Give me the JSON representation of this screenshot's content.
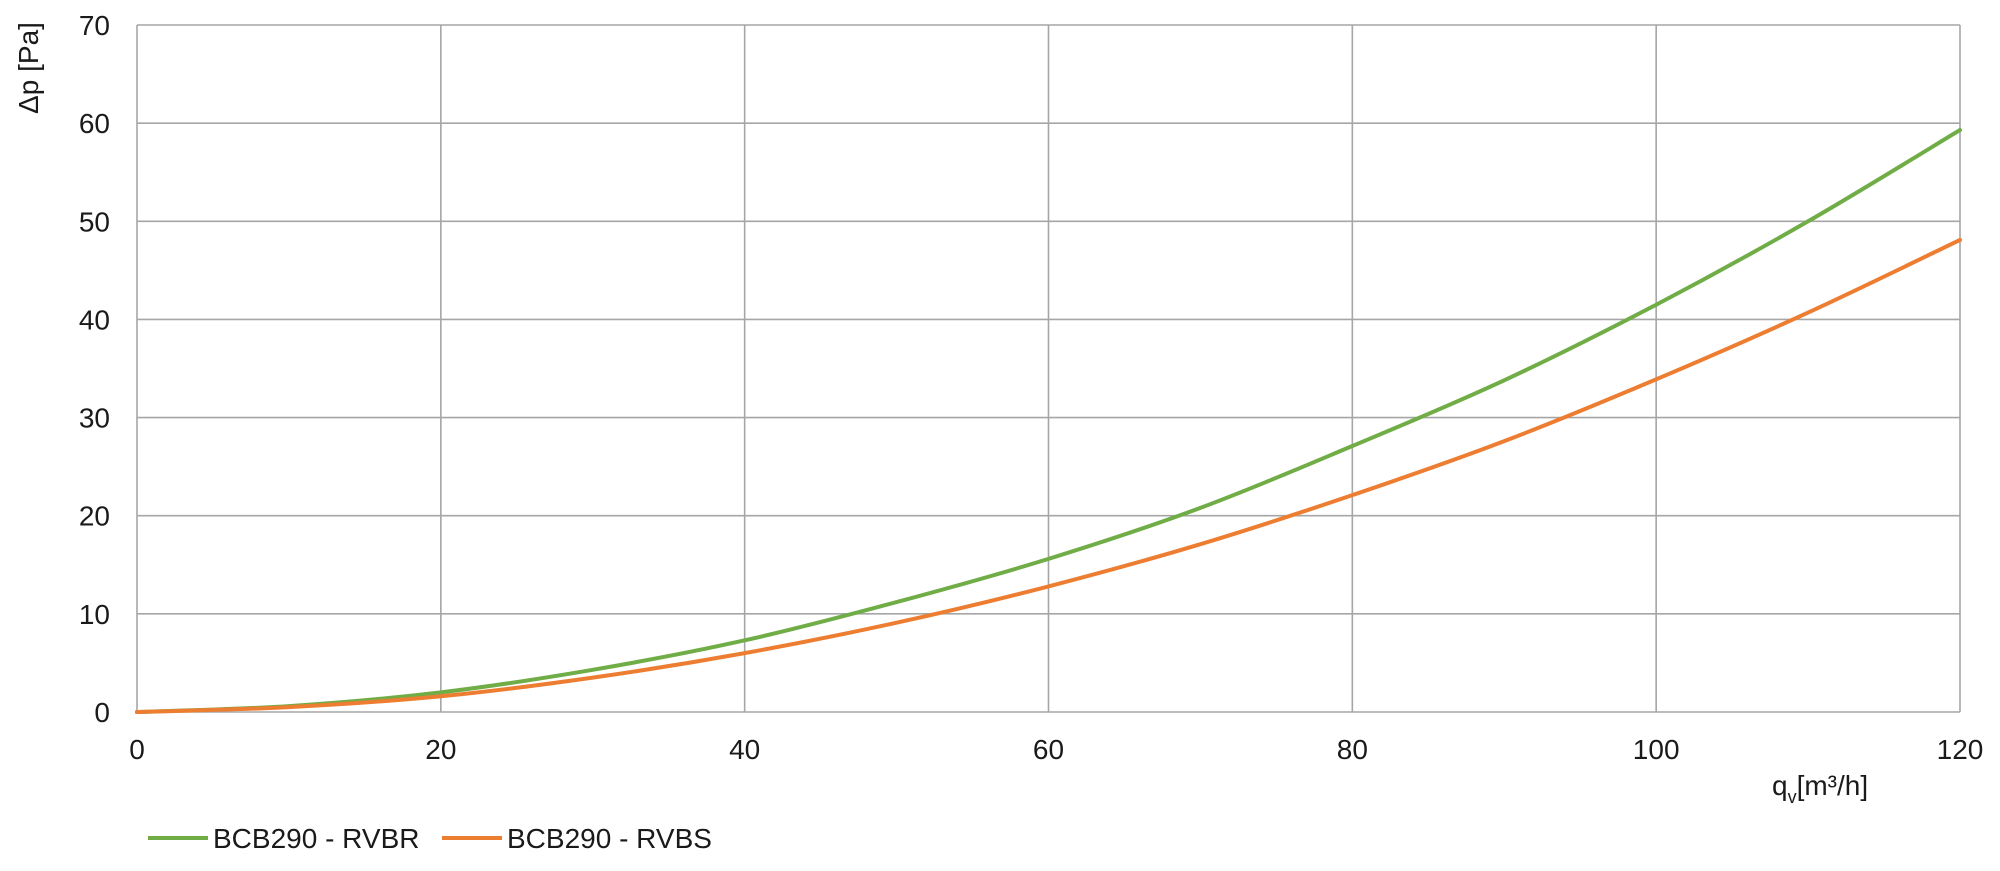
{
  "chart_data": {
    "type": "line",
    "title": "",
    "xlabel": "q",
    "xlabel_sub": "v",
    "xlabel_unit": "[m³/h]",
    "ylabel": "Δp [Pa]",
    "xlim": [
      0,
      120
    ],
    "ylim": [
      0,
      70
    ],
    "x_ticks": [
      0,
      20,
      40,
      60,
      80,
      100,
      120
    ],
    "y_ticks": [
      0,
      10,
      20,
      30,
      40,
      50,
      60,
      70
    ],
    "grid": true,
    "legend_position": "bottom-left",
    "x": [
      0,
      10,
      20,
      30,
      40,
      50,
      60,
      70,
      80,
      90,
      100,
      110,
      120
    ],
    "series": [
      {
        "name": "BCB290 - RVBR",
        "color": "#70ad47",
        "values": [
          0,
          0.6,
          2.0,
          4.3,
          7.3,
          11.2,
          15.6,
          20.8,
          27.1,
          33.8,
          41.5,
          50.0,
          59.3
        ]
      },
      {
        "name": "BCB290 - RVBS",
        "color": "#ed7d31",
        "values": [
          0,
          0.5,
          1.6,
          3.5,
          6.0,
          9.1,
          12.8,
          17.1,
          22.1,
          27.6,
          33.9,
          40.7,
          48.1
        ]
      }
    ]
  }
}
